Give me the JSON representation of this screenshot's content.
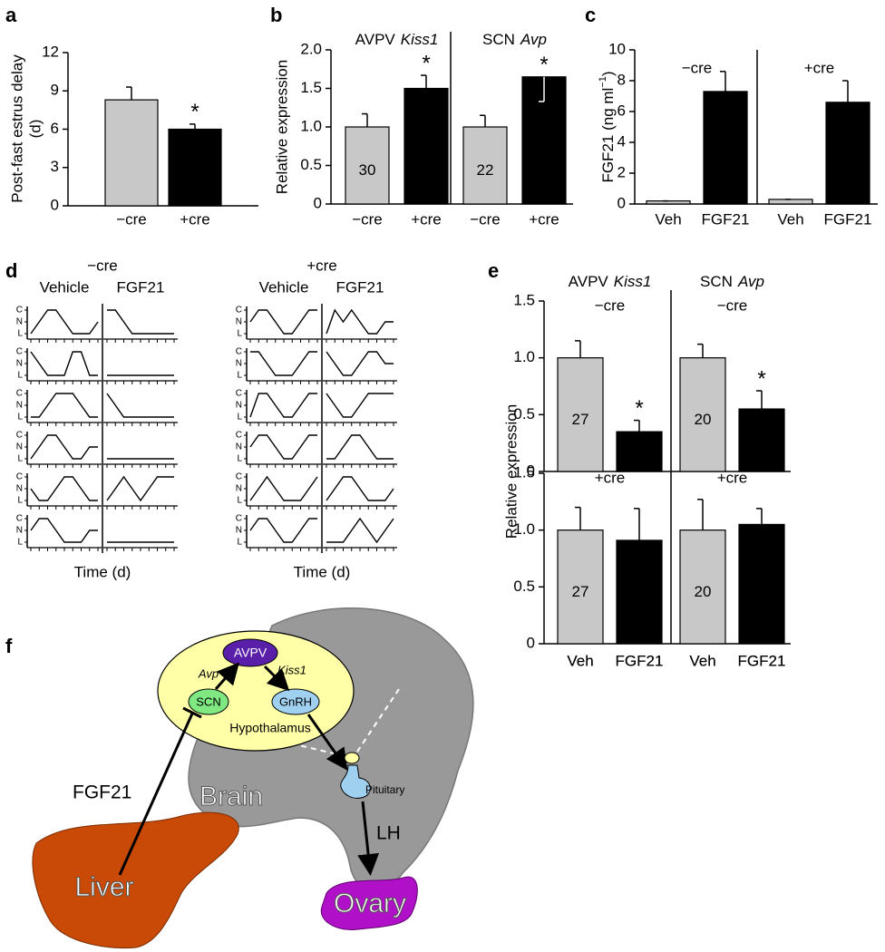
{
  "chart_data": [
    {
      "panel": "a",
      "type": "bar",
      "categories": [
        "−cre",
        "+cre"
      ],
      "values": [
        8.3,
        6.0
      ],
      "errors": [
        1.0,
        0.4
      ],
      "significant": [
        false,
        true
      ],
      "star": "*",
      "colors": [
        "#c8c8c8",
        "#000000"
      ],
      "y_label": [
        "Post-fast estrus delay",
        "(d)"
      ],
      "ylim": [
        0,
        12
      ],
      "yticks": [
        0,
        3,
        6,
        9,
        12
      ]
    },
    {
      "panel": "b",
      "type": "grouped_bar",
      "y_label": "Relative expression",
      "categories": [
        "−cre",
        "+cre"
      ],
      "colors": [
        "#c8c8c8",
        "#000000"
      ],
      "star": "*",
      "ylim": [
        0,
        2
      ],
      "yticks": [
        0,
        0.5,
        {
          "value": 1,
          "label": "1.0"
        },
        1.5,
        {
          "value": 2,
          "label": "2.0"
        }
      ],
      "groups": [
        {
          "region": "AVPV",
          "gene": "Kiss1",
          "values": [
            1.0,
            1.5
          ],
          "errors": [
            0.17,
            0.17
          ],
          "error_down": [
            false,
            false
          ],
          "significant": [
            false,
            true
          ],
          "n": 30
        },
        {
          "region": "SCN",
          "gene": "Avp",
          "values": [
            1.0,
            1.65
          ],
          "errors": [
            0.15,
            0.32
          ],
          "error_down": [
            false,
            true
          ],
          "significant": [
            false,
            true
          ],
          "n": 22
        }
      ]
    },
    {
      "panel": "c",
      "type": "grouped_bar",
      "y_label_parts": [
        "FGF21 (ng ml",
        "−1",
        ")"
      ],
      "categories": [
        "Veh",
        "FGF21"
      ],
      "colors": [
        "#c8c8c8",
        "#000000"
      ],
      "ylim": [
        0,
        10
      ],
      "yticks": [
        0,
        2,
        4,
        6,
        8,
        10
      ],
      "groups": [
        {
          "label": "−cre",
          "values": [
            0.2,
            7.3
          ],
          "errors": [
            0,
            1.3
          ]
        },
        {
          "label": "+cre",
          "values": [
            0.3,
            6.6
          ],
          "errors": [
            0,
            1.4
          ]
        }
      ]
    },
    {
      "panel": "d",
      "type": "line",
      "x_label": "Time (d)",
      "ylim": [
        0,
        2
      ],
      "yticks": [
        {
          "value": 2,
          "label": "C"
        },
        {
          "value": 1,
          "label": "N"
        },
        {
          "value": 0,
          "label": "L"
        }
      ],
      "groups": [
        {
          "label": "−cre",
          "conditions": [
            {
              "label": "Vehicle",
              "traces": [
                [
                  0,
                  1,
                  2,
                  2,
                  1,
                  0,
                  0,
                  0,
                  1
                ],
                [
                  2,
                  1,
                  0,
                  0,
                  0,
                  2,
                  2,
                  0,
                  0
                ],
                [
                  0,
                  0,
                  1,
                  2,
                  2,
                  2,
                  1,
                  0,
                  0
                ],
                [
                  0,
                  1,
                  2,
                  2,
                  1,
                  0,
                  0,
                  1,
                  1
                ],
                [
                  1,
                  0,
                  0,
                  1,
                  2,
                  2,
                  1,
                  0,
                  0
                ],
                [
                  1,
                  2,
                  2,
                  1,
                  0,
                  0,
                  0,
                  1,
                  1
                ]
              ]
            },
            {
              "label": "FGF21",
              "traces": [
                [
                  2,
                  2,
                  1,
                  0,
                  0,
                  0,
                  0,
                  0,
                  0
                ],
                [
                  0,
                  0,
                  0,
                  0,
                  0,
                  0,
                  0,
                  0,
                  0
                ],
                [
                  2,
                  1,
                  0,
                  0,
                  0,
                  0,
                  0,
                  0,
                  0
                ],
                [
                  0,
                  0,
                  0,
                  0,
                  0,
                  0,
                  0,
                  0,
                  0
                ],
                [
                  0,
                  1,
                  2,
                  1,
                  0,
                  1,
                  2,
                  2,
                  2
                ],
                [
                  0,
                  0,
                  0,
                  0,
                  0,
                  0,
                  0,
                  0,
                  0
                ]
              ]
            }
          ]
        },
        {
          "label": "+cre",
          "conditions": [
            {
              "label": "Vehicle",
              "traces": [
                [
                  1,
                  2,
                  2,
                  1,
                  0,
                  0,
                  1,
                  2,
                  2
                ],
                [
                  2,
                  2,
                  1,
                  0,
                  0,
                  0,
                  1,
                  2,
                  2
                ],
                [
                  0,
                  2,
                  2,
                  1,
                  0,
                  0,
                  1,
                  2,
                  2
                ],
                [
                  1,
                  2,
                  2,
                  1,
                  0,
                  0,
                  1,
                  2,
                  2
                ],
                [
                  0,
                  1,
                  2,
                  1,
                  0,
                  0,
                  0,
                  1,
                  2
                ],
                [
                  1,
                  2,
                  2,
                  1,
                  0,
                  0,
                  1,
                  2,
                  2
                ]
              ]
            },
            {
              "label": "FGF21",
              "traces": [
                [
                  0,
                  2,
                  1,
                  2,
                  1,
                  0,
                  0,
                  1,
                  1
                ],
                [
                  2,
                  1,
                  0,
                  0,
                  1,
                  2,
                  2,
                  1,
                  1
                ],
                [
                  2,
                  1,
                  0,
                  0,
                  1,
                  2,
                  2,
                  2,
                  2
                ],
                [
                  0,
                  0,
                  1,
                  2,
                  2,
                  1,
                  0,
                  0,
                  0
                ],
                [
                  0,
                  1,
                  2,
                  2,
                  1,
                  0,
                  0,
                  0,
                  1
                ],
                [
                  0,
                  0,
                  0,
                  1,
                  2,
                  1,
                  0,
                  1,
                  2
                ]
              ]
            }
          ]
        }
      ]
    },
    {
      "panel": "e",
      "type": "grouped_bar",
      "y_label": "Relative expression",
      "categories": [
        "Veh",
        "FGF21"
      ],
      "colors": [
        "#c8c8c8",
        "#000000"
      ],
      "star": "*",
      "ylim": [
        0,
        1.5
      ],
      "yticks": [
        0,
        0.5,
        {
          "value": 1,
          "label": "1.0"
        },
        1.5
      ],
      "headers": [
        {
          "region": "AVPV",
          "gene": "Kiss1"
        },
        {
          "region": "SCN",
          "gene": "Avp"
        }
      ],
      "rows": [
        {
          "label": "−cre",
          "groups": [
            {
              "values": [
                1.0,
                0.35
              ],
              "errors": [
                0.15,
                0.1
              ],
              "significant": [
                false,
                true
              ],
              "n": 27
            },
            {
              "values": [
                1.0,
                0.55
              ],
              "errors": [
                0.12,
                0.16
              ],
              "significant": [
                false,
                true
              ],
              "n": 20
            }
          ]
        },
        {
          "label": "+cre",
          "groups": [
            {
              "values": [
                1.0,
                0.91
              ],
              "errors": [
                0.2,
                0.28
              ],
              "significant": [
                false,
                false
              ],
              "n": 27
            },
            {
              "values": [
                1.0,
                1.05
              ],
              "errors": [
                0.27,
                0.14
              ],
              "significant": [
                false,
                false
              ],
              "n": 20
            }
          ]
        }
      ]
    }
  ],
  "diagram": {
    "panel": "f",
    "labels": {
      "avpv": "AVPV",
      "avp": "Avp",
      "kiss1": "Kiss1",
      "scn": "SCN",
      "gnrh": "GnRH",
      "hypothalamus": "Hypothalamus",
      "brain": "Brain",
      "pituitary": "Pituitary",
      "fgf21": "FGF21",
      "lh": "LH",
      "liver": "Liver",
      "ovary": "Ovary"
    }
  }
}
